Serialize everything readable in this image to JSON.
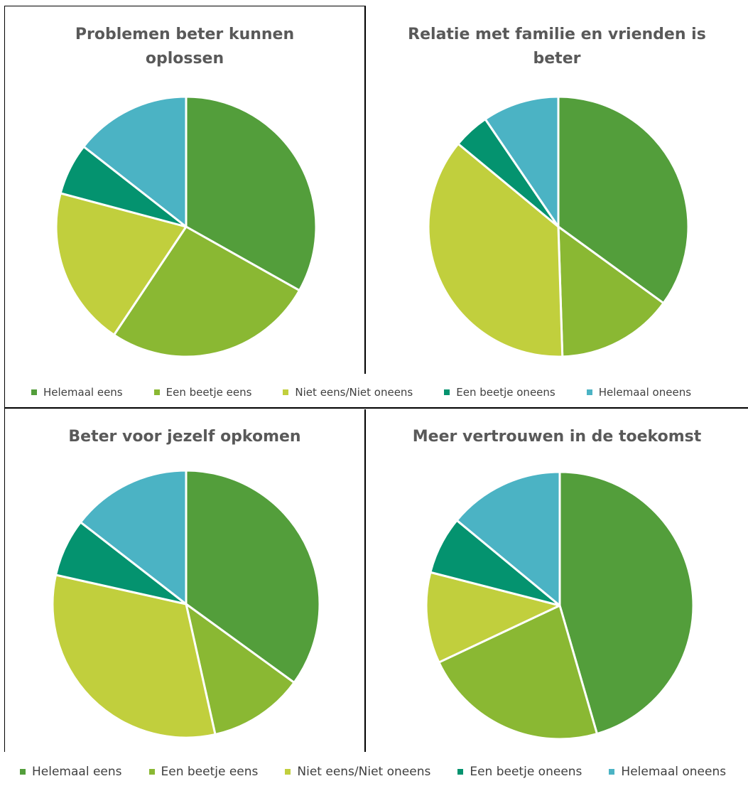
{
  "colors": {
    "helemaal_eens": "#539E3B",
    "een_beetje_eens": "#8AB833",
    "niet_eens_niet_oneens": "#C1CF3D",
    "een_beetje_oneens": "#04936F",
    "helemaal_oneens": "#4BB3C4"
  },
  "legend_top": {
    "items": [
      {
        "label": "Helemaal eens",
        "color": "#539E3B"
      },
      {
        "label": "Een beetje eens",
        "color": "#8AB833"
      },
      {
        "label": "Niet eens/Niet oneens",
        "color": "#C1CF3D"
      },
      {
        "label": "Een beetje oneens",
        "color": "#04936F"
      },
      {
        "label": "Helemaal oneens",
        "color": "#4BB3C4"
      }
    ]
  },
  "legend_bottom": {
    "items": [
      {
        "label": "Helemaal eens",
        "color": "#539E3B"
      },
      {
        "label": "Een beetje eens",
        "color": "#8AB833"
      },
      {
        "label": "Niet eens/Niet oneens",
        "color": "#C1CF3D"
      },
      {
        "label": "Een beetje oneens",
        "color": "#04936F"
      },
      {
        "label": "Helemaal oneens",
        "color": "#4BB3C4"
      }
    ]
  },
  "chart_data": [
    {
      "type": "pie",
      "title_lines": [
        "Problemen beter kunnen",
        "oplossen"
      ],
      "categories": [
        "Helemaal eens",
        "Een beetje eens",
        "Niet eens/Niet oneens",
        "Een beetje oneens",
        "Helemaal oneens"
      ],
      "values": [
        31,
        24.5,
        18.5,
        6,
        13.5
      ],
      "legend": "bottom"
    },
    {
      "type": "pie",
      "title_lines": [
        "Relatie met familie en vrienden is",
        "beter"
      ],
      "categories": [
        "Helemaal eens",
        "Een beetje eens",
        "Niet eens/Niet oneens",
        "Een beetje oneens",
        "Helemaal oneens"
      ],
      "values": [
        35,
        14.5,
        36.5,
        4.5,
        9.5
      ],
      "legend": "bottom"
    },
    {
      "type": "pie",
      "title_lines": [
        "Beter voor jezelf opkomen"
      ],
      "categories": [
        "Helemaal eens",
        "Een beetje eens",
        "Niet eens/Niet oneens",
        "Een beetje oneens",
        "Helemaal oneens"
      ],
      "values": [
        35,
        11.5,
        32,
        7,
        14.5
      ],
      "legend": "bottom"
    },
    {
      "type": "pie",
      "title_lines": [
        "Meer vertrouwen in de toekomst"
      ],
      "categories": [
        "Helemaal eens",
        "Een beetje eens",
        "Niet eens/Niet oneens",
        "Een beetje oneens",
        "Helemaal oneens"
      ],
      "values": [
        45.5,
        22.5,
        11,
        7,
        14
      ],
      "legend": "bottom"
    }
  ]
}
